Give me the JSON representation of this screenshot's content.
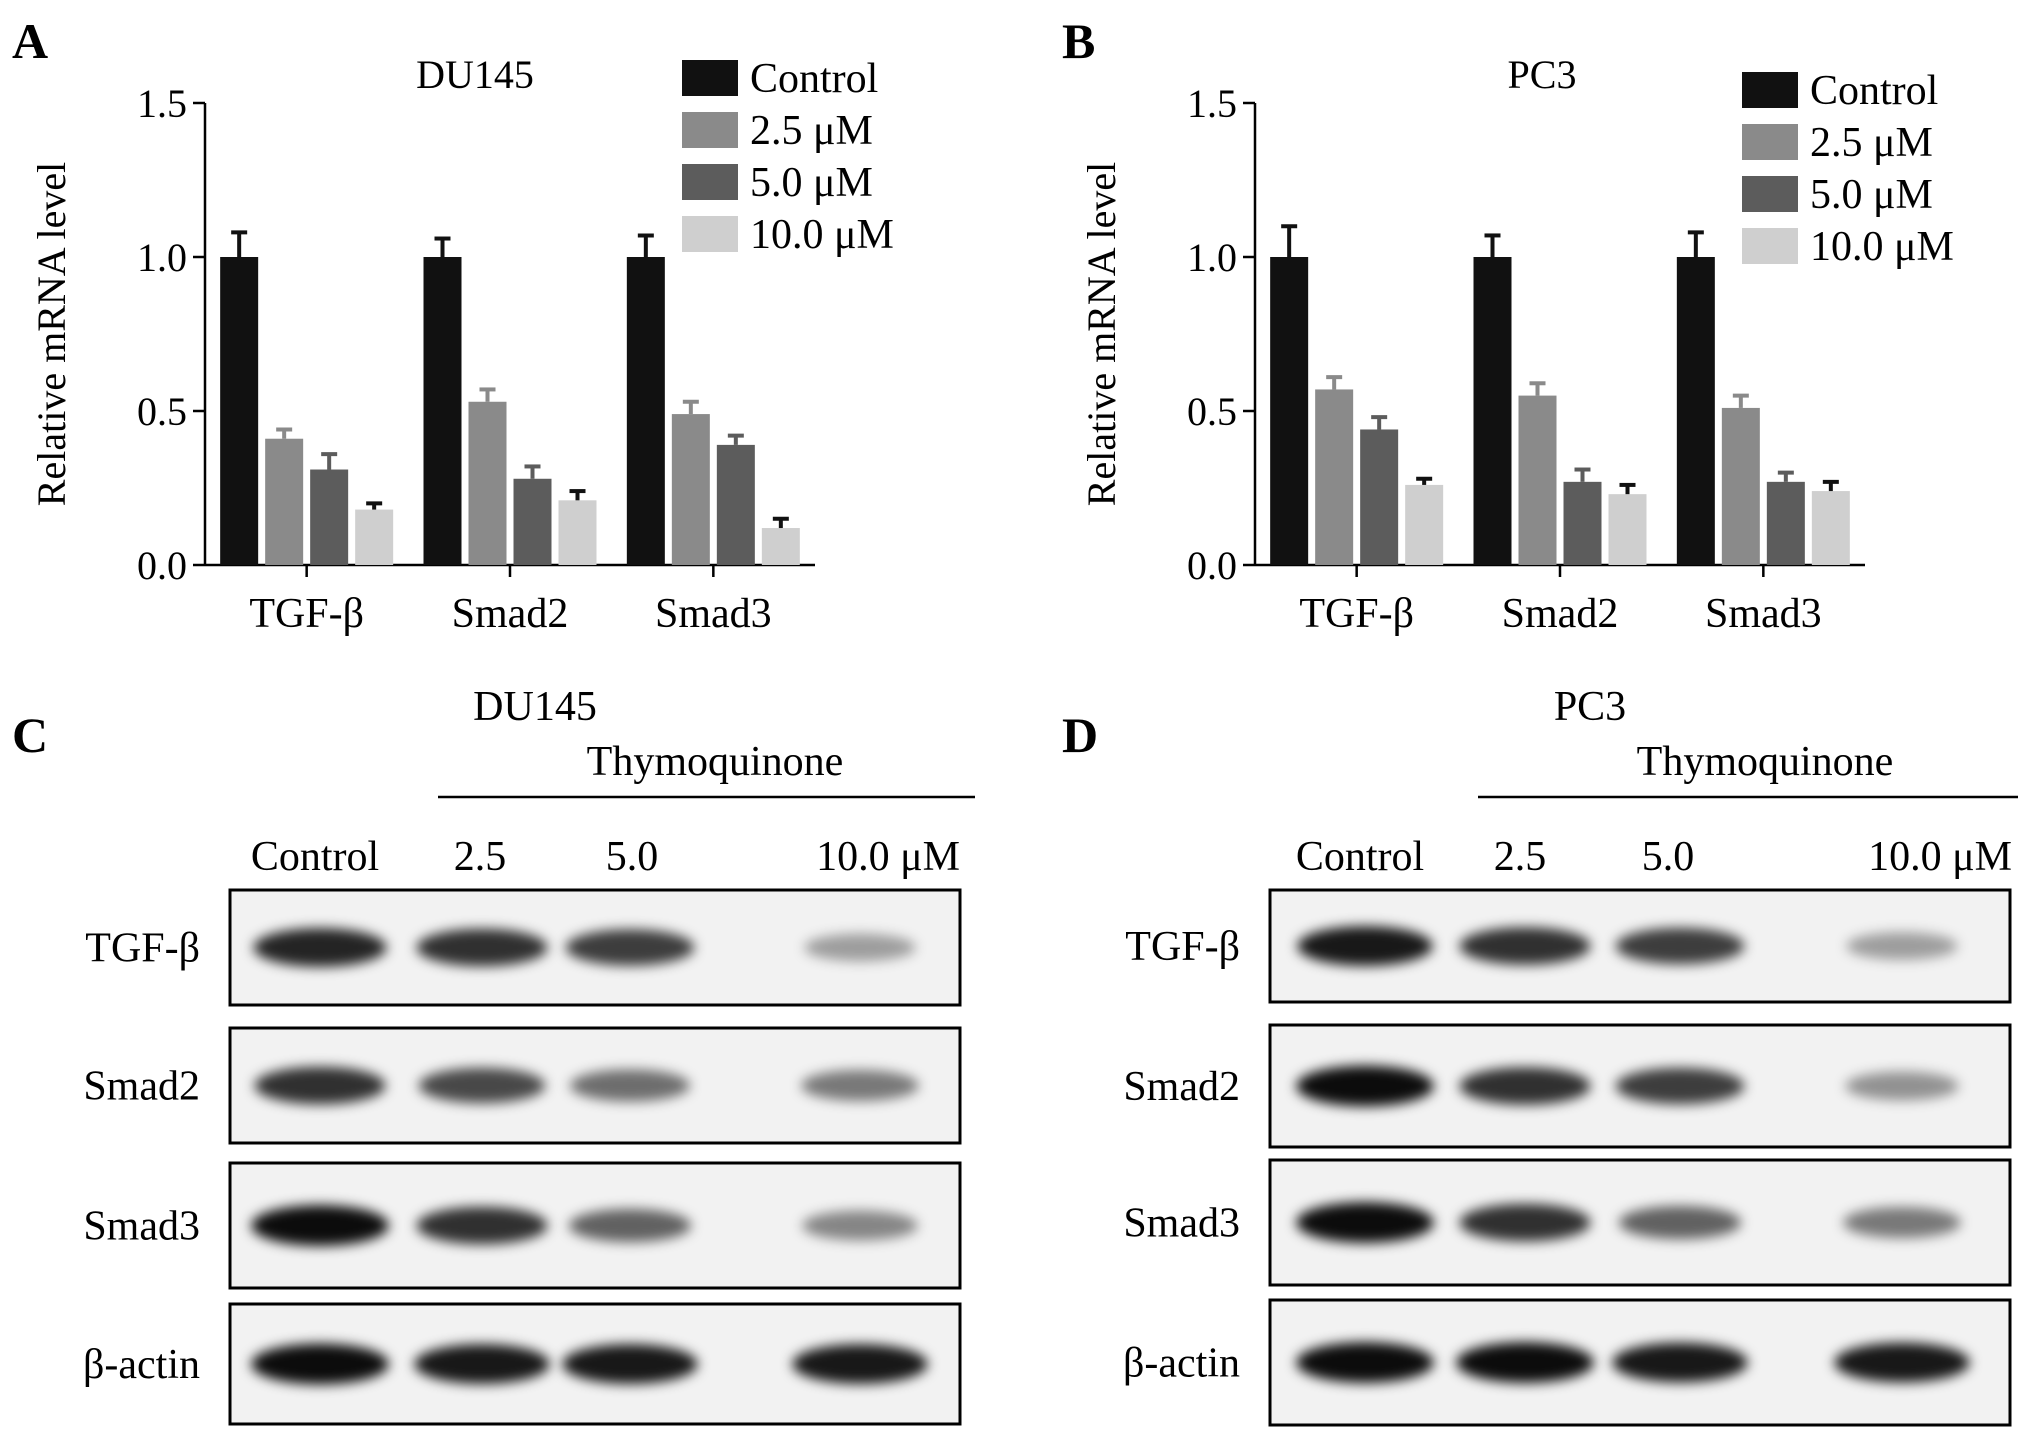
{
  "panels": {
    "A": "A",
    "B": "B",
    "C": "C",
    "D": "D"
  },
  "chart_data": [
    {
      "type": "bar",
      "title": "DU145",
      "ylabel": "Relative mRNA level",
      "xlabel": "",
      "categories": [
        "TGF-β",
        "Smad2",
        "Smad3"
      ],
      "ylim": [
        0,
        1.5
      ],
      "yticks": [
        "0.0",
        "0.5",
        "1.0",
        "1.5"
      ],
      "ytick_values": [
        0,
        0.5,
        1.0,
        1.5
      ],
      "legend_position": "top-right",
      "series": [
        {
          "name": "Control",
          "color": "#111111",
          "values": [
            1.0,
            1.0,
            1.0
          ],
          "errors": [
            0.08,
            0.06,
            0.07
          ]
        },
        {
          "name": "2.5 μM",
          "color": "#8a8a8a",
          "values": [
            0.41,
            0.53,
            0.49
          ],
          "errors": [
            0.03,
            0.04,
            0.04
          ]
        },
        {
          "name": "5.0 μM",
          "color": "#5c5c5c",
          "values": [
            0.31,
            0.28,
            0.39
          ],
          "errors": [
            0.05,
            0.04,
            0.03
          ]
        },
        {
          "name": "10.0 μM",
          "color": "#cfcfcf",
          "values": [
            0.18,
            0.21,
            0.12
          ],
          "errors": [
            0.02,
            0.03,
            0.03
          ]
        }
      ]
    },
    {
      "type": "bar",
      "title": "PC3",
      "ylabel": "Relative mRNA level",
      "xlabel": "",
      "categories": [
        "TGF-β",
        "Smad2",
        "Smad3"
      ],
      "ylim": [
        0,
        1.5
      ],
      "yticks": [
        "0.0",
        "0.5",
        "1.0",
        "1.5"
      ],
      "ytick_values": [
        0,
        0.5,
        1.0,
        1.5
      ],
      "legend_position": "top-right",
      "series": [
        {
          "name": "Control",
          "color": "#111111",
          "values": [
            1.0,
            1.0,
            1.0
          ],
          "errors": [
            0.1,
            0.07,
            0.08
          ]
        },
        {
          "name": "2.5 μM",
          "color": "#8a8a8a",
          "values": [
            0.57,
            0.55,
            0.51
          ],
          "errors": [
            0.04,
            0.04,
            0.04
          ]
        },
        {
          "name": "5.0 μM",
          "color": "#5c5c5c",
          "values": [
            0.44,
            0.27,
            0.27
          ],
          "errors": [
            0.04,
            0.04,
            0.03
          ]
        },
        {
          "name": "10.0 μM",
          "color": "#cfcfcf",
          "values": [
            0.26,
            0.23,
            0.24
          ],
          "errors": [
            0.02,
            0.03,
            0.03
          ]
        }
      ]
    }
  ],
  "blots": [
    {
      "cell_line": "DU145",
      "treatment": "Thymoquinone",
      "lanes": [
        "Control",
        "2.5",
        "5.0",
        "10.0 μM"
      ],
      "rows": [
        {
          "label": "TGF-β",
          "intensity": [
            0.85,
            0.8,
            0.75,
            0.35
          ]
        },
        {
          "label": "Smad2",
          "intensity": [
            0.8,
            0.7,
            0.55,
            0.5
          ]
        },
        {
          "label": "Smad3",
          "intensity": [
            0.95,
            0.8,
            0.6,
            0.45
          ]
        },
        {
          "label": "β-actin",
          "intensity": [
            0.95,
            0.9,
            0.9,
            0.9
          ]
        }
      ]
    },
    {
      "cell_line": "PC3",
      "treatment": "Thymoquinone",
      "lanes": [
        "Control",
        "2.5",
        "5.0",
        "10.0 μM"
      ],
      "rows": [
        {
          "label": "TGF-β",
          "intensity": [
            0.9,
            0.8,
            0.75,
            0.35
          ]
        },
        {
          "label": "Smad2",
          "intensity": [
            0.95,
            0.8,
            0.75,
            0.4
          ]
        },
        {
          "label": "Smad3",
          "intensity": [
            0.95,
            0.8,
            0.6,
            0.5
          ]
        },
        {
          "label": "β-actin",
          "intensity": [
            0.95,
            0.95,
            0.9,
            0.9
          ]
        }
      ]
    }
  ]
}
